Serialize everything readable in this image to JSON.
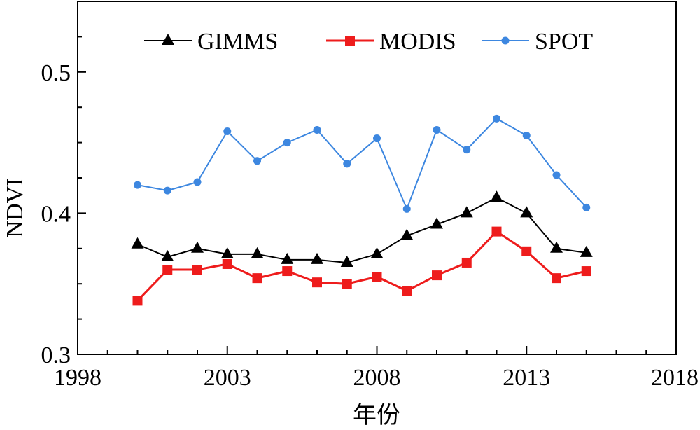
{
  "chart_data": {
    "type": "line",
    "xlabel": "年份",
    "ylabel": "NDVI",
    "xlim": [
      1998,
      2018
    ],
    "ylim": [
      0.3,
      0.55
    ],
    "xticks": [
      1998,
      2003,
      2008,
      2013,
      2018
    ],
    "yticks": [
      0.3,
      0.4,
      0.5
    ],
    "xtick_labels": [
      "1998",
      "2003",
      "2008",
      "2013",
      "2018"
    ],
    "ytick_labels": [
      "0.3",
      "0.4",
      "0.5"
    ],
    "grid": false,
    "legend_position": "top",
    "x": [
      2000,
      2001,
      2002,
      2003,
      2004,
      2005,
      2006,
      2007,
      2008,
      2009,
      2010,
      2011,
      2012,
      2013,
      2014,
      2015
    ],
    "series": [
      {
        "name": "GIMMS",
        "color": "#000000",
        "marker": "triangle",
        "values": [
          0.378,
          0.369,
          0.375,
          0.371,
          0.371,
          0.367,
          0.367,
          0.365,
          0.371,
          0.384,
          0.392,
          0.4,
          0.411,
          0.4,
          0.375,
          0.372
        ]
      },
      {
        "name": "MODIS",
        "color": "#ee1c1c",
        "marker": "square",
        "values": [
          0.338,
          0.36,
          0.36,
          0.364,
          0.354,
          0.359,
          0.351,
          0.35,
          0.355,
          0.345,
          0.356,
          0.365,
          0.387,
          0.373,
          0.354,
          0.359
        ]
      },
      {
        "name": "SPOT",
        "color": "#3d87e0",
        "marker": "circle",
        "values": [
          0.42,
          0.416,
          0.422,
          0.458,
          0.437,
          0.45,
          0.459,
          0.435,
          0.453,
          0.403,
          0.459,
          0.445,
          0.467,
          0.455,
          0.427,
          0.404
        ]
      }
    ]
  }
}
